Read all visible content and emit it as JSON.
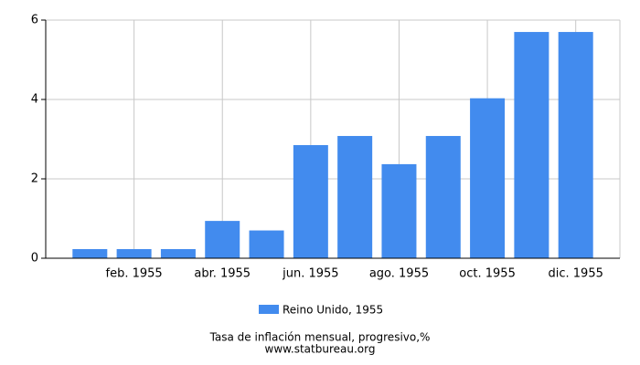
{
  "chart_data": {
    "type": "bar",
    "title": "Tasa de inflación mensual, progresivo,%",
    "source": "www.statbureau.org",
    "categories": [
      null,
      "feb. 1955",
      null,
      "abr. 1955",
      null,
      "jun. 1955",
      null,
      "ago. 1955",
      null,
      "oct. 1955",
      null,
      "dic. 1955"
    ],
    "series": [
      {
        "name": "Reino Unido, 1955",
        "color": "#428bee",
        "values": [
          0.23,
          0.23,
          0.23,
          0.94,
          0.7,
          2.85,
          3.08,
          2.37,
          3.08,
          4.03,
          5.7,
          5.7
        ]
      }
    ],
    "ylim": [
      0,
      6
    ],
    "yticks": [
      0,
      2,
      4,
      6
    ],
    "grid": true
  }
}
